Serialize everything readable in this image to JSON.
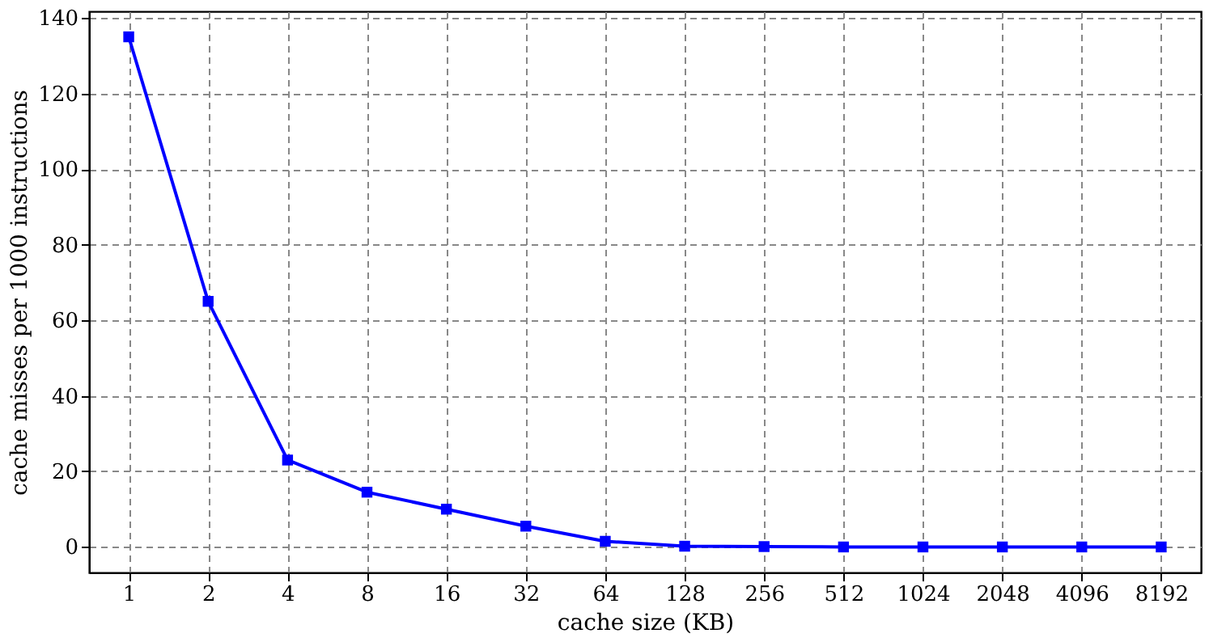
{
  "chart_data": {
    "type": "line",
    "xlabel": "cache size (KB)",
    "ylabel": "cache misses per 1000 instructions",
    "categories": [
      "1",
      "2",
      "4",
      "8",
      "16",
      "32",
      "64",
      "128",
      "256",
      "512",
      "1024",
      "2048",
      "4096",
      "8192"
    ],
    "series": [
      {
        "color": "#0000ff",
        "values": [
          135,
          65,
          23,
          14.5,
          10,
          5.5,
          1.5,
          0.2,
          0.1,
          0,
          0,
          0,
          0,
          0
        ]
      }
    ],
    "ylim": [
      -6.75,
      141.75
    ],
    "yticks": [
      0,
      20,
      40,
      60,
      80,
      100,
      120,
      140
    ],
    "grid": true,
    "marker": "square",
    "line_style": "solid"
  }
}
